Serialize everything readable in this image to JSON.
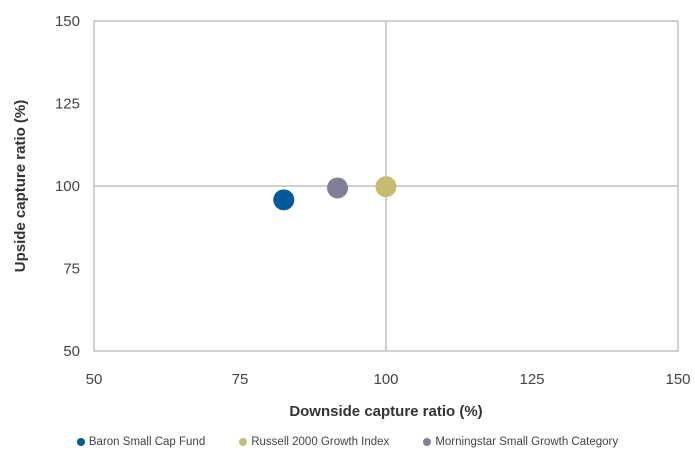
{
  "chart_data": {
    "type": "scatter",
    "xlabel": "Downside capture ratio  (%)",
    "ylabel": "Upside capture ratio  (%)",
    "xlim": [
      50,
      150
    ],
    "ylim": [
      50,
      150
    ],
    "x_ticks": [
      50,
      75,
      100,
      125,
      150
    ],
    "y_ticks": [
      50,
      75,
      100,
      125,
      150
    ],
    "reference_lines": {
      "x": 100,
      "y": 100
    },
    "legend_position": "bottom",
    "series": [
      {
        "name": "Baron Small Cap Fund",
        "x": 82.5,
        "y": 95.8,
        "color": "#005a9c"
      },
      {
        "name": "Russell 2000 Growth Index",
        "x": 100.0,
        "y": 99.8,
        "color": "#c4bc6e"
      },
      {
        "name": "Morningstar Small Growth Category",
        "x": 91.7,
        "y": 99.4,
        "color": "#7f7f95"
      }
    ]
  }
}
